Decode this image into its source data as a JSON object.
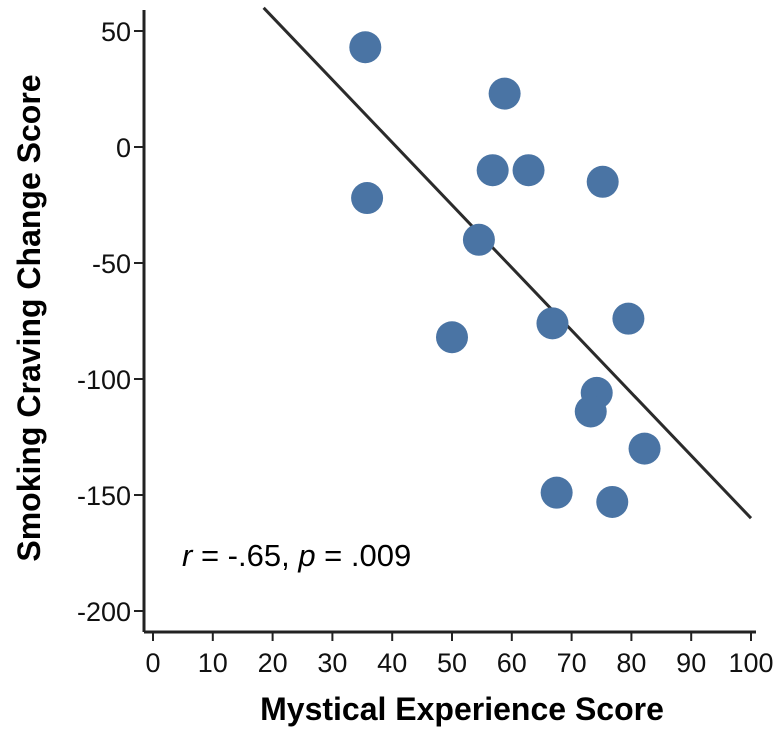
{
  "chart_data": {
    "type": "scatter",
    "title": "",
    "xlabel": "Mystical Experience Score",
    "ylabel": "Smoking Craving Change Score",
    "xlim": [
      0,
      100
    ],
    "ylim": [
      -200,
      50
    ],
    "xticks": [
      0,
      10,
      20,
      30,
      40,
      50,
      60,
      70,
      80,
      90,
      100
    ],
    "yticks": [
      50,
      0,
      -50,
      -100,
      -150,
      -200
    ],
    "grid": false,
    "point_color": "#4a74a4",
    "line_color": "#2b2b2b",
    "points": [
      {
        "x": 35.5,
        "y": 43
      },
      {
        "x": 35.8,
        "y": -22
      },
      {
        "x": 58.8,
        "y": 23
      },
      {
        "x": 56.8,
        "y": -10
      },
      {
        "x": 62.8,
        "y": -10
      },
      {
        "x": 75.2,
        "y": -15
      },
      {
        "x": 54.5,
        "y": -40
      },
      {
        "x": 66.8,
        "y": -76
      },
      {
        "x": 79.5,
        "y": -74
      },
      {
        "x": 50.0,
        "y": -82
      },
      {
        "x": 74.2,
        "y": -106
      },
      {
        "x": 73.2,
        "y": -114
      },
      {
        "x": 82.2,
        "y": -130
      },
      {
        "x": 67.5,
        "y": -149
      },
      {
        "x": 76.8,
        "y": -153
      }
    ],
    "regression_line": {
      "x": [
        18.5,
        100
      ],
      "y": [
        60,
        -160
      ]
    },
    "annotation": {
      "r_label": "r",
      "r_text": " = -.65, ",
      "p_label": "p",
      "p_text": " = .009"
    }
  }
}
